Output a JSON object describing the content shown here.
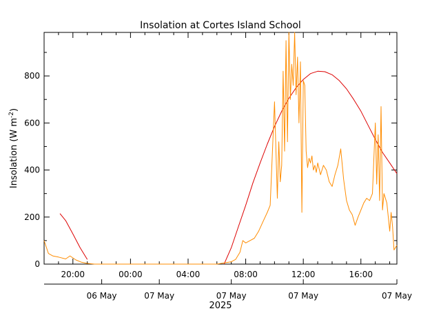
{
  "chart_data": {
    "type": "line",
    "title": "Insolation at Cortes Island School",
    "ylabel_main": "Insolation (W m",
    "ylabel_sup": "-2",
    "ylabel_close": ")",
    "ylim": [
      0,
      985
    ],
    "xlim_hours": [
      18.0,
      42.5
    ],
    "yticks": [
      {
        "value": 0,
        "label": "0"
      },
      {
        "value": 200,
        "label": "200"
      },
      {
        "value": 400,
        "label": "400"
      },
      {
        "value": 600,
        "label": "600"
      },
      {
        "value": 800,
        "label": "800"
      }
    ],
    "xticks_top": [
      {
        "hour": 20,
        "label": "20:00"
      },
      {
        "hour": 24,
        "label": "00:00"
      },
      {
        "hour": 28,
        "label": "04:00"
      },
      {
        "hour": 32,
        "label": "08:00"
      },
      {
        "hour": 36,
        "label": "12:00"
      },
      {
        "hour": 40,
        "label": "16:00"
      }
    ],
    "xticks_bottom": [
      {
        "hour": 22,
        "label": "06 May"
      },
      {
        "hour": 26,
        "label": "07 May"
      },
      {
        "hour": 31,
        "label": "07 May"
      },
      {
        "hour": 36,
        "label": "07 May"
      },
      {
        "hour": 42.5,
        "label": "07 May"
      }
    ],
    "xlabel_year": "2025",
    "grid": false,
    "colors": {
      "measured": "#ff8c00",
      "clear_sky": "#dd0000",
      "axes": "#000000"
    },
    "series": [
      {
        "key": "clear_sky",
        "color": "#dd0000",
        "x": [
          19.1,
          19.5,
          20.0,
          20.5,
          21.0,
          21.5,
          30.5,
          31.0,
          31.5,
          32.0,
          32.5,
          33.0,
          33.5,
          34.0,
          34.5,
          35.0,
          35.5,
          36.0,
          36.5,
          37.0,
          37.5,
          38.0,
          38.5,
          39.0,
          39.5,
          40.0,
          40.5,
          41.0,
          41.5,
          42.0,
          42.5
        ],
        "y": [
          215,
          185,
          128,
          70,
          20,
          null,
          0,
          70,
          160,
          250,
          345,
          430,
          510,
          585,
          650,
          705,
          750,
          785,
          810,
          820,
          818,
          805,
          780,
          745,
          700,
          650,
          590,
          530,
          475,
          430,
          385
        ]
      },
      {
        "key": "measured",
        "color": "#ff8c00",
        "x": [
          18.0,
          18.3,
          18.6,
          19.0,
          19.5,
          19.8,
          20.2,
          20.6,
          21.0,
          21.5,
          22.0,
          23.0,
          24.0,
          26.0,
          28.0,
          29.0,
          30.0,
          30.5,
          31.0,
          31.3,
          31.6,
          31.8,
          32.0,
          32.3,
          32.6,
          32.9,
          33.2,
          33.5,
          33.7,
          34.0,
          34.2,
          34.3,
          34.4,
          34.5,
          34.6,
          34.7,
          34.8,
          34.9,
          35.0,
          35.1,
          35.2,
          35.3,
          35.4,
          35.5,
          35.6,
          35.7,
          35.8,
          35.9,
          36.0,
          36.1,
          36.2,
          36.3,
          36.4,
          36.5,
          36.6,
          36.7,
          36.8,
          36.9,
          37.0,
          37.2,
          37.4,
          37.6,
          37.8,
          38.0,
          38.2,
          38.4,
          38.6,
          38.8,
          39.0,
          39.2,
          39.4,
          39.6,
          39.8,
          40.0,
          40.2,
          40.4,
          40.6,
          40.8,
          41.0,
          41.1,
          41.2,
          41.3,
          41.4,
          41.5,
          41.6,
          41.8,
          42.0,
          42.1,
          42.2,
          42.3,
          42.5
        ],
        "y": [
          100,
          45,
          35,
          30,
          22,
          35,
          18,
          8,
          3,
          0,
          0,
          0,
          0,
          0,
          0,
          0,
          0,
          5,
          10,
          20,
          50,
          100,
          90,
          100,
          110,
          140,
          180,
          220,
          250,
          690,
          280,
          520,
          350,
          420,
          820,
          480,
          950,
          520,
          985,
          700,
          850,
          760,
          985,
          720,
          880,
          600,
          860,
          220,
          780,
          760,
          480,
          410,
          450,
          430,
          460,
          400,
          420,
          390,
          430,
          380,
          420,
          400,
          350,
          330,
          380,
          420,
          490,
          360,
          270,
          230,
          210,
          165,
          200,
          230,
          260,
          280,
          270,
          300,
          600,
          340,
          550,
          270,
          670,
          230,
          300,
          260,
          140,
          220,
          160,
          60,
          80
        ]
      }
    ]
  }
}
